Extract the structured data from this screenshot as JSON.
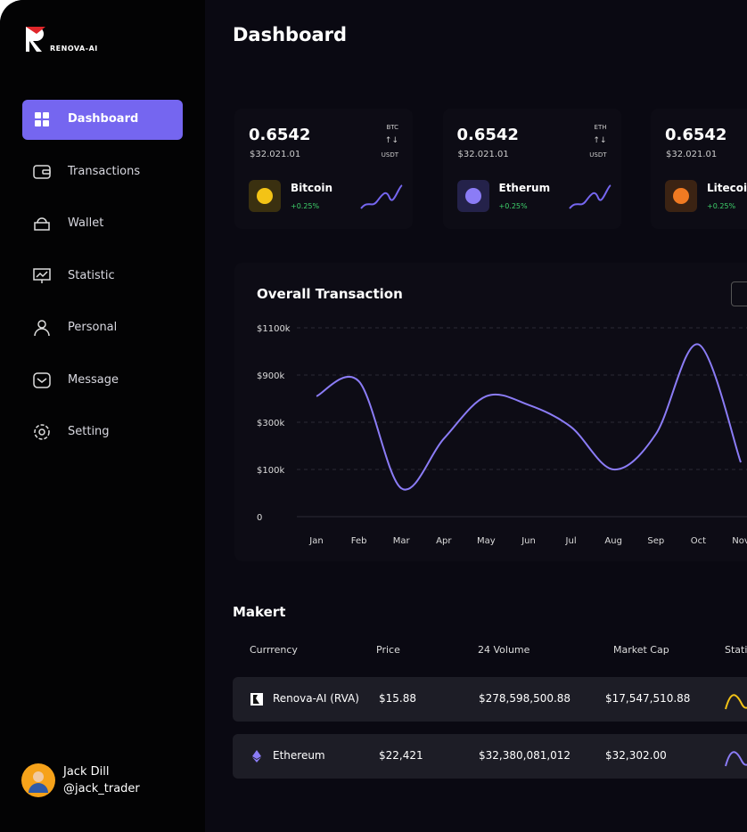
{
  "brand": {
    "name": "RENOVA-AI"
  },
  "header": {
    "title": "Dashboard"
  },
  "nav": [
    "Dashboard",
    "Transactions",
    "Wallet",
    "Statistic",
    "Personal",
    "Message",
    "Setting"
  ],
  "user": {
    "name": "Jack Dill",
    "handle": "@jack_trader"
  },
  "cards": [
    {
      "price": "0.6542",
      "value": "$32.021.01",
      "base": "BTC",
      "arrows": "↑↓",
      "quote": "USDT",
      "name": "Bitcoin",
      "change": "+0.25%",
      "color": "#f3c316",
      "bg": "#3a3010",
      "symbol": "B"
    },
    {
      "price": "0.6542",
      "value": "$32.021.01",
      "base": "ETH",
      "arrows": "↑↓",
      "quote": "USDT",
      "name": "Etherum",
      "change": "+0.25%",
      "color": "#8b7cf6",
      "bg": "#24224a",
      "symbol": "◆"
    },
    {
      "price": "0.6542",
      "value": "$32.021.01",
      "name": "Litecoin",
      "change": "+0.25%",
      "color": "#f07a22",
      "bg": "#3b2313",
      "symbol": "Ł"
    }
  ],
  "chart": {
    "type": "line",
    "title": "Overall Transaction",
    "color": "#8b7cf6",
    "categories": [
      "Jan",
      "Feb",
      "Mar",
      "Apr",
      "May",
      "Jun",
      "Jul",
      "Aug",
      "Sep",
      "Oct",
      "Nov"
    ],
    "values": [
      630,
      820,
      60,
      230,
      630,
      520,
      280,
      100,
      250,
      1030,
      130
    ],
    "ylim": [
      0,
      1100
    ],
    "yticks": [
      0,
      {
        "value": 100,
        "label": "$100k"
      },
      {
        "value": 300,
        "label": "$300k"
      },
      {
        "value": 900,
        "label": "$900k"
      },
      {
        "value": 1100,
        "label": "$1100k"
      }
    ],
    "grid": true
  },
  "market": {
    "title": "Makert",
    "columns": [
      "Currrency",
      "Price",
      "24 Volume",
      "Market Cap",
      "Static"
    ],
    "rows": [
      [
        "Renova-AI (RVA)",
        "$15.88",
        "$278,598,500.88",
        "$17,547,510.88"
      ],
      [
        "Ethereum",
        "$22,421",
        "$32,380,081,012",
        "$32,302.00"
      ]
    ]
  }
}
